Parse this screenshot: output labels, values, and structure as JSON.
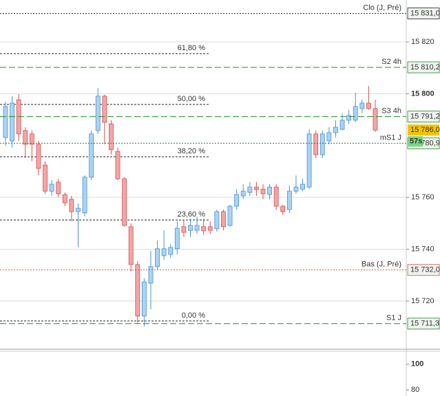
{
  "chart_data": {
    "type": "candlestick",
    "up_color": "#a9d4f5",
    "up_border": "#4a90d0",
    "down_color": "#f3a5a5",
    "down_border": "#d65050",
    "open": [
      15783.1,
      15781.8,
      15797.7,
      15785.8,
      15784.5,
      15780.5,
      15772.5,
      15762.4,
      15765.9,
      15761.1,
      15759.3,
      15754.5,
      15754.0,
      15767.8,
      15785.8,
      15799.1,
      15788.4,
      15777.8,
      15767.2,
      15748.7,
      15734.1,
      15714.2,
      15726.9,
      15733.3,
      15737.5,
      15738.0,
      15740.2,
      15748.7,
      15747.3,
      15747.3,
      15748.7,
      15748.7,
      15747.9,
      15754.5,
      15749.2,
      15756.6,
      15760.6,
      15761.9,
      15764.0,
      15763.2,
      15761.1,
      15764.0,
      15756.6,
      15755.3,
      15762.4,
      15763.2,
      15764.0,
      15784.5,
      15776.5,
      15781.8,
      15785.0,
      15786.3,
      15789.8,
      15789.8,
      15794.3,
      15796.4,
      15794.3
    ],
    "high": [
      15796.9,
      15799.1,
      15799.9,
      15787.1,
      15785.8,
      15781.8,
      15773.9,
      15766.7,
      15767.2,
      15761.9,
      15760.6,
      15757.7,
      15768.5,
      15785.8,
      15802.2,
      15799.6,
      15789.8,
      15779.2,
      15767.8,
      15750.0,
      15735.4,
      15728.8,
      15739.4,
      15743.3,
      15747.3,
      15742.0,
      15750.8,
      15751.3,
      15751.8,
      15752.6,
      15751.8,
      15750.8,
      15755.3,
      15755.3,
      15757.1,
      15763.2,
      15765.1,
      15765.9,
      15765.9,
      15765.1,
      15765.1,
      15765.1,
      15757.1,
      15764.6,
      15768.5,
      15767.2,
      15786.3,
      15785.8,
      15785.8,
      15787.1,
      15789.8,
      15792.4,
      15793.8,
      15800.4,
      15797.7,
      15803.0,
      15797.7
    ],
    "low": [
      15780.0,
      15779.2,
      15781.8,
      15775.2,
      15773.9,
      15768.5,
      15761.4,
      15760.6,
      15760.1,
      15756.6,
      15750.8,
      15740.7,
      15752.6,
      15766.7,
      15784.5,
      15780.5,
      15776.5,
      15766.7,
      15748.7,
      15731.4,
      15711.5,
      15710.2,
      15716.8,
      15732.2,
      15735.9,
      15736.7,
      15738.0,
      15744.7,
      15744.7,
      15746.0,
      15745.5,
      15746.0,
      15746.8,
      15747.3,
      15748.7,
      15755.3,
      15759.3,
      15760.6,
      15760.6,
      15759.3,
      15759.3,
      15755.3,
      15753.2,
      15754.0,
      15761.4,
      15762.4,
      15763.2,
      15775.2,
      15775.2,
      15780.5,
      15783.1,
      15785.8,
      15788.4,
      15789.0,
      15792.4,
      15793.8,
      15785.3
    ],
    "close": [
      15795.1,
      15796.4,
      15784.5,
      15780.5,
      15780.5,
      15771.2,
      15762.4,
      15765.1,
      15761.4,
      15757.9,
      15754.5,
      15755.8,
      15767.8,
      15784.5,
      15799.1,
      15789.0,
      15778.4,
      15767.2,
      15749.2,
      15734.1,
      15714.2,
      15727.4,
      15733.3,
      15740.2,
      15740.2,
      15740.7,
      15748.1,
      15746.5,
      15749.2,
      15749.2,
      15747.1,
      15747.3,
      15754.5,
      15748.7,
      15756.6,
      15761.1,
      15762.4,
      15764.0,
      15763.0,
      15761.4,
      15764.0,
      15756.6,
      15754.5,
      15762.4,
      15764.0,
      15765.1,
      15784.5,
      15776.5,
      15784.5,
      15785.0,
      15787.1,
      15789.8,
      15791.6,
      15795.1,
      15796.4,
      15794.3,
      15786.0
    ],
    "ylim": [
      15701.4,
      15836.2
    ],
    "yticks": [
      {
        "value": 15820,
        "label": "15 820"
      },
      {
        "value": 15800,
        "label": "15 800"
      },
      {
        "value": 15760,
        "label": "15 760"
      },
      {
        "value": 15740,
        "label": "15 740"
      },
      {
        "value": 15720,
        "label": "15 720"
      }
    ],
    "grid": true,
    "levels": [
      {
        "name": "Clo (J, Pré)",
        "value": 15831.0,
        "value_label": "15 831,0",
        "color": "#222222",
        "style": "dotted"
      },
      {
        "name": "S2 4h",
        "value": 15810.2,
        "value_label": "15 810,2",
        "color": "#1f8a2a",
        "style": "dashed"
      },
      {
        "name": "S3 4h",
        "value": 15791.2,
        "value_label": "15 791,2",
        "color": "#1f8a2a",
        "style": "dashed"
      },
      {
        "name": "mS1 J",
        "value": 15780.9,
        "value_label": "15 780,9",
        "color": "#1f8a2a",
        "style": "dotted"
      },
      {
        "name": "Bas (J, Pré)",
        "value": 15732.0,
        "value_label": "15 732,0",
        "color": "#e05050",
        "style": "dotted"
      },
      {
        "name": "S1 J",
        "value": 15711.3,
        "value_label": "15 711,3",
        "color": "#1f8a2a",
        "style": "dashed"
      }
    ],
    "fib_levels": [
      {
        "label": "61,80 %",
        "value": 15815.5
      },
      {
        "label": "50,00 %",
        "value": 15795.9
      },
      {
        "label": "38,20 %",
        "value": 15775.7
      },
      {
        "label": "23,60 %",
        "value": 15751.3
      },
      {
        "label": "0,00 %",
        "value": 15712.3
      }
    ],
    "current_price": {
      "value": 15786.0,
      "label": "15 786,0",
      "countdown": "57s",
      "color": "#f5c400",
      "countdown_color": "#7bd67b"
    },
    "lower_panel": {
      "ylim": [
        75.3,
        110
      ],
      "yticks": [
        100,
        80
      ]
    }
  }
}
